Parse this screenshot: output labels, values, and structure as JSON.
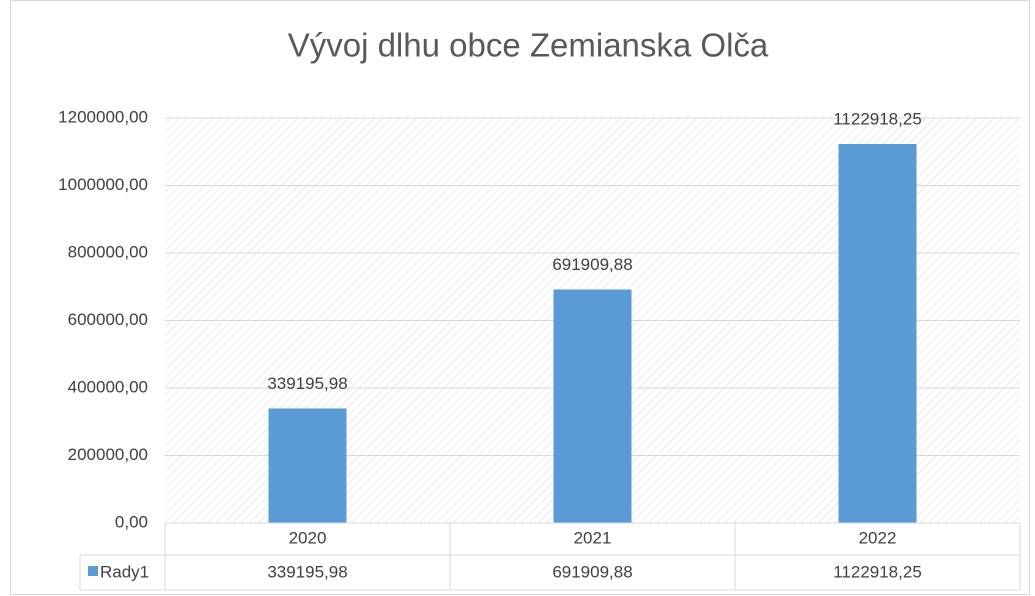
{
  "chart_data": {
    "type": "bar",
    "title": "Vývoj dlhu obce Zemianska Olča",
    "categories": [
      "2020",
      "2021",
      "2022"
    ],
    "series": [
      {
        "name": "Rady1",
        "color": "#5b9bd5",
        "values": [
          339195.98,
          691909.88,
          1122918.25
        ],
        "value_labels": [
          "339195,98",
          "691909,88",
          "1122918,25"
        ]
      }
    ],
    "ylim": [
      0,
      1200000
    ],
    "yticks": [
      {
        "value": 0,
        "label": "0,00"
      },
      {
        "value": 200000,
        "label": "200000,00"
      },
      {
        "value": 400000,
        "label": "400000,00"
      },
      {
        "value": 600000,
        "label": "600000,00"
      },
      {
        "value": 800000,
        "label": "800000,00"
      },
      {
        "value": 1000000,
        "label": "1000000,00"
      },
      {
        "value": 1200000,
        "label": "1200000,00"
      }
    ],
    "grid": true
  }
}
